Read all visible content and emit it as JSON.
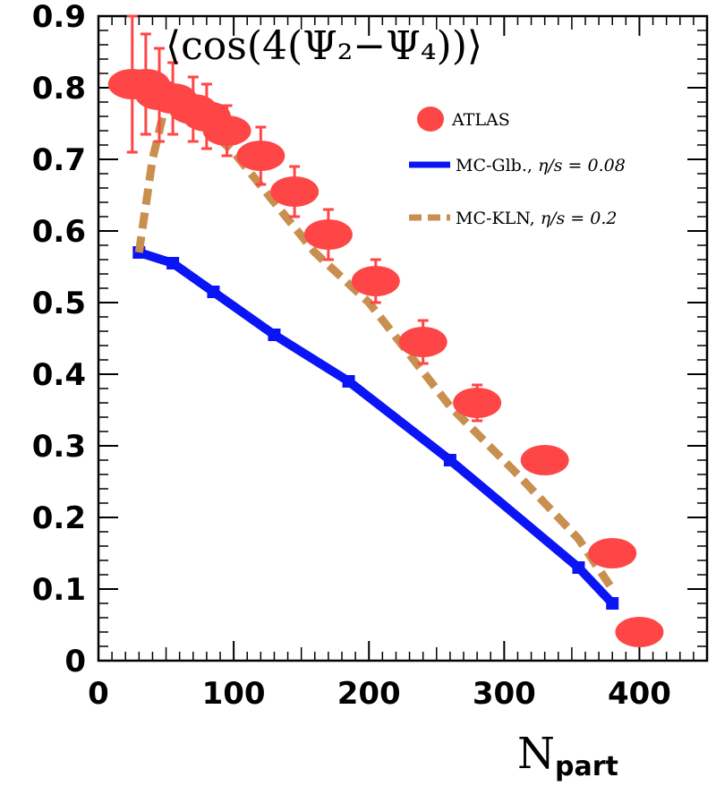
{
  "chart_data": {
    "type": "scatter",
    "title": "⟨cos(4(Ψ₂−Ψ₄))⟩",
    "xlabel": "N",
    "xlabel_sub": "part",
    "ylabel": "",
    "xlim": [
      0,
      450
    ],
    "ylim": [
      0,
      0.9
    ],
    "xticks": [
      0,
      100,
      200,
      300,
      400
    ],
    "xtick_labels": [
      "0",
      "100",
      "200",
      "300",
      "400"
    ],
    "yticks": [
      0,
      0.1,
      0.2,
      0.3,
      0.4,
      0.5,
      0.6,
      0.7,
      0.8,
      0.9
    ],
    "ytick_labels": [
      "0",
      "0.1",
      "0.2",
      "0.3",
      "0.4",
      "0.5",
      "0.6",
      "0.7",
      "0.8",
      "0.9"
    ],
    "legend_position": "top-right",
    "series": [
      {
        "name": "ATLAS",
        "label": "ATLAS",
        "style": "points",
        "color": "#ff4646",
        "x": [
          25,
          35,
          45,
          55,
          70,
          80,
          95,
          120,
          145,
          170,
          205,
          240,
          280,
          330,
          380,
          400
        ],
        "y": [
          0.805,
          0.805,
          0.79,
          0.785,
          0.77,
          0.76,
          0.74,
          0.705,
          0.655,
          0.595,
          0.53,
          0.445,
          0.36,
          0.28,
          0.15,
          0.04
        ],
        "err": [
          0.095,
          0.07,
          0.065,
          0.05,
          0.045,
          0.045,
          0.035,
          0.04,
          0.035,
          0.035,
          0.03,
          0.03,
          0.025,
          0,
          0,
          0
        ]
      },
      {
        "name": "MC-Glb., η/s = 0.08",
        "label_prefix": "MC-Glb., ",
        "label_param": "η/s = 0.08",
        "style": "solid",
        "color": "#0a14f5",
        "x": [
          30,
          55,
          85,
          130,
          185,
          260,
          355,
          380
        ],
        "y": [
          0.57,
          0.555,
          0.515,
          0.455,
          0.39,
          0.28,
          0.13,
          0.08
        ]
      },
      {
        "name": "MC-KLN, η/s = 0.2",
        "label_prefix": "MC-KLN, ",
        "label_param": "η/s = 0.2",
        "style": "dashed",
        "color": "#c98f4f",
        "x": [
          30,
          40,
          50,
          60,
          80,
          100,
          130,
          160,
          200,
          260,
          310,
          355,
          380
        ],
        "y": [
          0.57,
          0.7,
          0.78,
          0.775,
          0.745,
          0.71,
          0.64,
          0.57,
          0.5,
          0.355,
          0.26,
          0.17,
          0.1
        ]
      }
    ]
  }
}
